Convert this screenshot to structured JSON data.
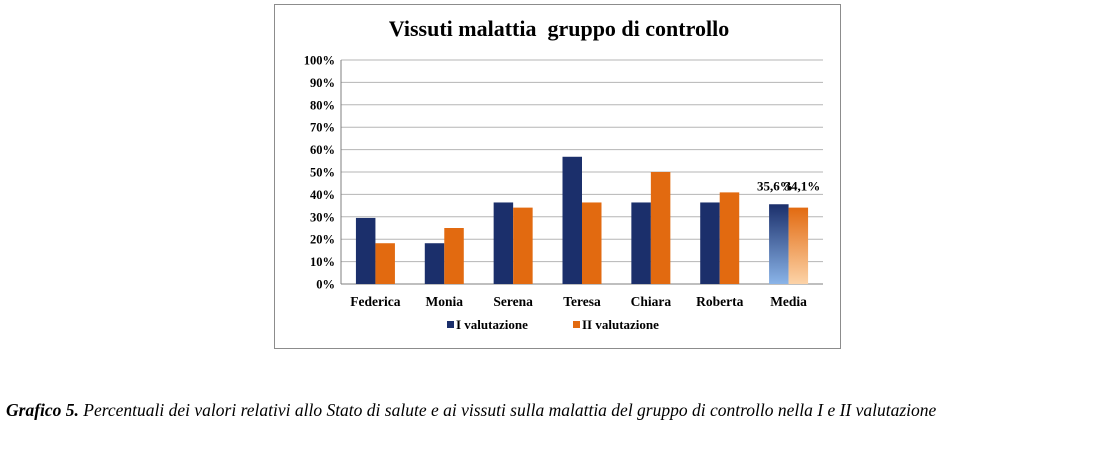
{
  "chart_data": {
    "type": "bar",
    "title": "Vissuti malattia  gruppo di controllo",
    "categories": [
      "Federica",
      "Monia",
      "Serena",
      "Teresa",
      "Chiara",
      "Roberta",
      "Media"
    ],
    "series": [
      {
        "name": "I valutazione",
        "color": "#1b2f6b",
        "values": [
          29.5,
          18.2,
          36.4,
          56.8,
          36.4,
          36.4,
          35.6
        ]
      },
      {
        "name": "II valutazione",
        "color": "#e26a10",
        "values": [
          18.2,
          25.0,
          34.1,
          36.4,
          50.0,
          40.9,
          34.1
        ]
      }
    ],
    "data_labels": {
      "Media": [
        "35,6%",
        "34,1%"
      ]
    },
    "yticks": [
      "0%",
      "10%",
      "20%",
      "30%",
      "40%",
      "50%",
      "60%",
      "70%",
      "80%",
      "90%",
      "100%"
    ],
    "ylim": [
      0,
      100
    ],
    "grid": true,
    "legend_position": "bottom",
    "media_gradient": {
      "I valutazione": [
        "#1b2f6b",
        "#8ab4e8"
      ],
      "II valutazione": [
        "#e26a10",
        "#fcd3a8"
      ]
    }
  },
  "caption": {
    "lead": "Grafico 5.",
    "text": " Percentuali dei valori relativi allo Stato di salute e ai vissuti sulla malattia del gruppo di controllo nella I e II valutazione"
  }
}
